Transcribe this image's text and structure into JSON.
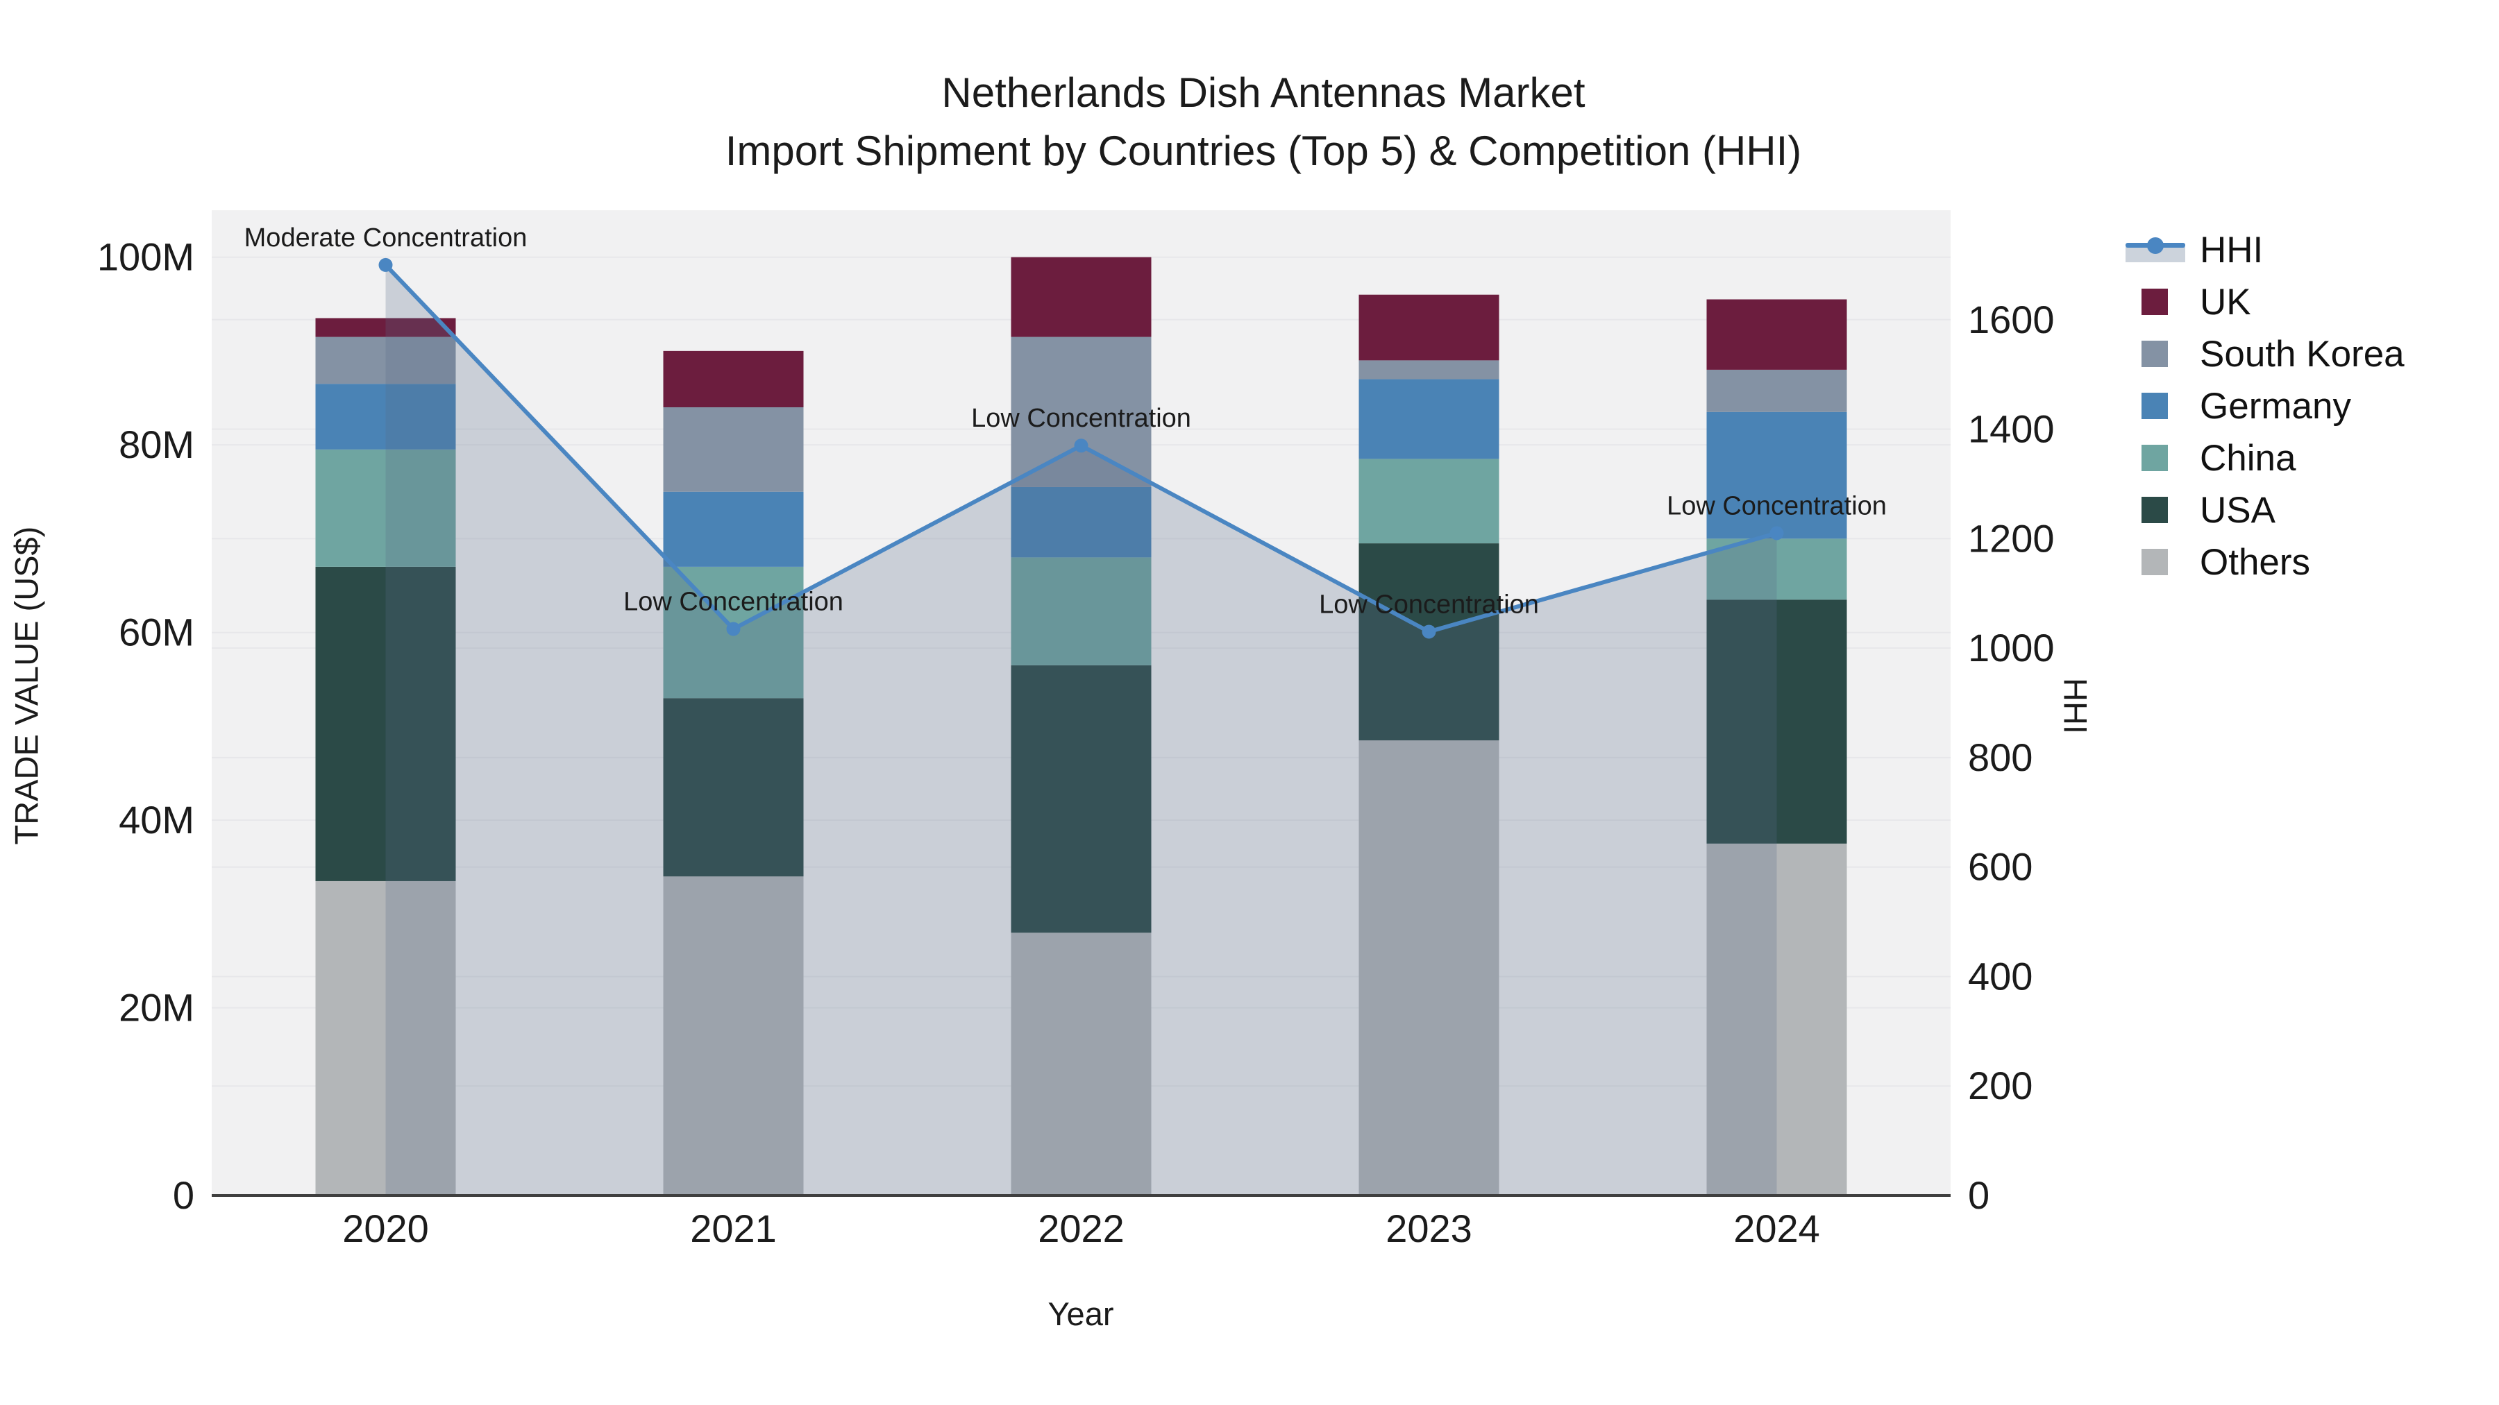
{
  "title": {
    "line1": "Netherlands Dish Antennas Market",
    "line2": "Import Shipment by Countries (Top 5) & Competition (HHI)"
  },
  "axes": {
    "x": {
      "title": "Year",
      "tick_labels": [
        "2020",
        "2021",
        "2022",
        "2023",
        "2024"
      ]
    },
    "y_left": {
      "title": "TRADE VALUE (US$)",
      "tick_labels": [
        "0",
        "20M",
        "40M",
        "60M",
        "80M",
        "100M"
      ],
      "tick_values": [
        0,
        20,
        40,
        60,
        80,
        100
      ]
    },
    "y_right": {
      "title": "HHI",
      "tick_labels": [
        "0",
        "200",
        "400",
        "600",
        "800",
        "1000",
        "1200",
        "1400",
        "1600"
      ],
      "tick_values": [
        0,
        200,
        400,
        600,
        800,
        1000,
        1200,
        1400,
        1600
      ]
    }
  },
  "legend": {
    "items": [
      {
        "label": "HHI",
        "type": "line",
        "color": "#4a86c2"
      },
      {
        "label": "UK",
        "type": "bar",
        "color": "#6c1d3e"
      },
      {
        "label": "South Korea",
        "type": "bar",
        "color": "#8492a4"
      },
      {
        "label": "Germany",
        "type": "bar",
        "color": "#4a83b5"
      },
      {
        "label": "China",
        "type": "bar",
        "color": "#6fa5a1"
      },
      {
        "label": "USA",
        "type": "bar",
        "color": "#2b4a47"
      },
      {
        "label": "Others",
        "type": "bar",
        "color": "#b3b6b8"
      }
    ]
  },
  "chart_data": {
    "type": "bar",
    "subtype": "stacked-bar-with-line",
    "categories": [
      "2020",
      "2021",
      "2022",
      "2023",
      "2024"
    ],
    "units_left": "million US$",
    "series": [
      {
        "name": "Others",
        "axis": "left",
        "color": "#b3b6b8",
        "values": [
          33.5,
          34,
          28,
          48.5,
          37.5
        ]
      },
      {
        "name": "USA",
        "axis": "left",
        "color": "#2b4a47",
        "values": [
          33.5,
          19,
          28.5,
          21,
          26
        ]
      },
      {
        "name": "China",
        "axis": "left",
        "color": "#6fa5a1",
        "values": [
          12.5,
          14,
          11.5,
          9,
          6.5
        ]
      },
      {
        "name": "Germany",
        "axis": "left",
        "color": "#4a83b5",
        "values": [
          7,
          8,
          7.5,
          8.5,
          13.5
        ]
      },
      {
        "name": "South Korea",
        "axis": "left",
        "color": "#8492a4",
        "values": [
          5,
          9,
          16,
          2,
          4.5
        ]
      },
      {
        "name": "UK",
        "axis": "left",
        "color": "#6c1d3e",
        "values": [
          2,
          6,
          8.5,
          7,
          7.5
        ]
      }
    ],
    "line_series": {
      "name": "HHI",
      "axis": "right",
      "color": "#4a86c2",
      "area_fill": "rgba(86,106,136,0.25)",
      "values": [
        1700,
        1035,
        1370,
        1030,
        1210
      ]
    },
    "annotations": [
      {
        "category": "2020",
        "text": "Moderate Concentration"
      },
      {
        "category": "2021",
        "text": "Low Concentration"
      },
      {
        "category": "2022",
        "text": "Low Concentration"
      },
      {
        "category": "2023",
        "text": "Low Concentration"
      },
      {
        "category": "2024",
        "text": "Low Concentration"
      }
    ],
    "ylim_left": [
      0,
      105
    ],
    "ylim_right": [
      0,
      1800
    ],
    "plot_bg": "#f1f1f2",
    "grid_color": "#e7e7ea",
    "axis_line_color": "#3f3f3f",
    "text_color": "#1b1b1b",
    "legend_position": "right",
    "grid": true
  }
}
